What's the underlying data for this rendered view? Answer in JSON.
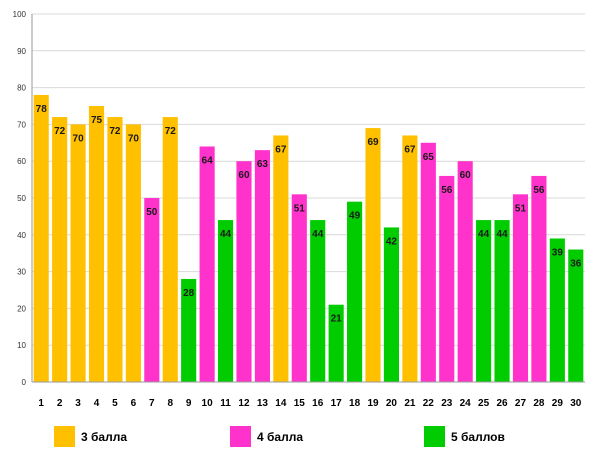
{
  "chart_data": {
    "type": "bar",
    "categories": [
      "1",
      "2",
      "3",
      "4",
      "5",
      "6",
      "7",
      "8",
      "9",
      "10",
      "11",
      "12",
      "13",
      "14",
      "15",
      "16",
      "17",
      "18",
      "19",
      "20",
      "21",
      "22",
      "23",
      "24",
      "25",
      "26",
      "27",
      "28",
      "29",
      "30"
    ],
    "values": [
      78,
      72,
      70,
      75,
      72,
      70,
      50,
      72,
      28,
      64,
      44,
      60,
      63,
      67,
      51,
      44,
      21,
      49,
      69,
      42,
      67,
      65,
      56,
      60,
      44,
      44,
      51,
      56,
      39,
      36
    ],
    "series_index": [
      0,
      0,
      0,
      0,
      0,
      0,
      1,
      0,
      2,
      1,
      2,
      1,
      1,
      0,
      1,
      2,
      2,
      2,
      0,
      2,
      0,
      1,
      1,
      1,
      2,
      2,
      1,
      1,
      2,
      2
    ],
    "series": [
      {
        "name": "3 балла",
        "color": "#FFC000"
      },
      {
        "name": "4 балла",
        "color": "#FF33CC"
      },
      {
        "name": "5 баллов",
        "color": "#00CC00"
      }
    ],
    "yticks": [
      "0",
      "10",
      "20",
      "30",
      "40",
      "50",
      "60",
      "70",
      "80",
      "90",
      "100"
    ],
    "ylim": [
      0,
      100
    ],
    "grid": true,
    "legend_position": "bottom"
  }
}
